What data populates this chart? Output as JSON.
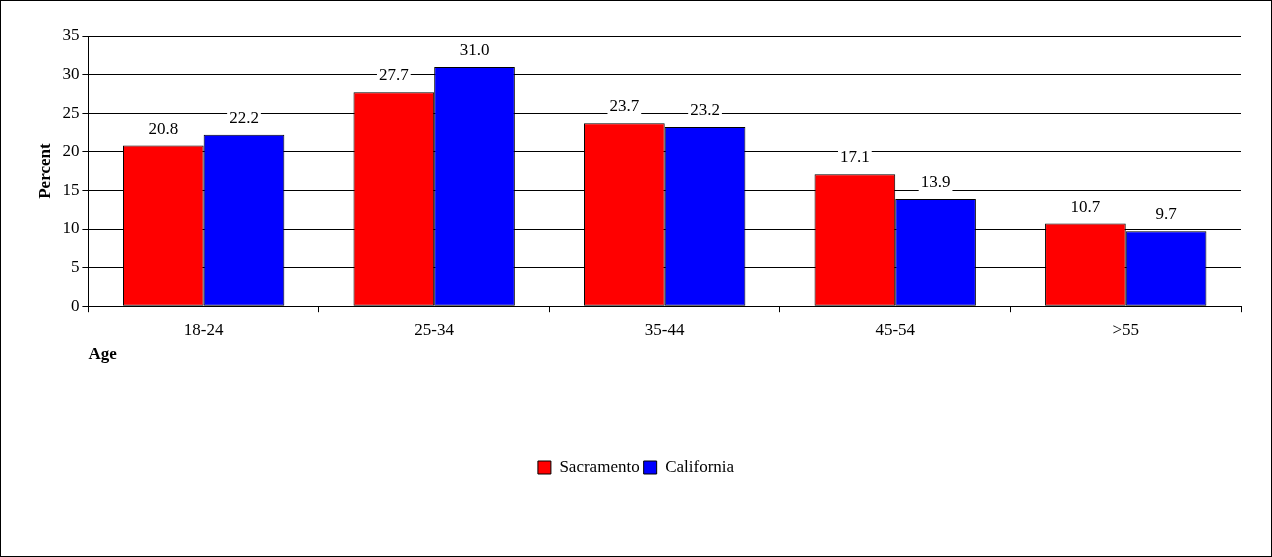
{
  "chart_data": {
    "type": "bar",
    "xlabel": "Age",
    "ylabel": "Percent",
    "categories": [
      "18-24",
      "25-34",
      "35-44",
      "45-54",
      ">55"
    ],
    "series": [
      {
        "name": "Sacramento",
        "color": "#ff0000",
        "values": [
          20.8,
          27.7,
          23.7,
          17.1,
          10.7
        ],
        "value_labels": [
          "20.8",
          "27.7",
          "23.7",
          "17.1",
          "10.7"
        ]
      },
      {
        "name": "California",
        "color": "#0000ff",
        "values": [
          22.2,
          31.0,
          23.2,
          13.9,
          9.7
        ],
        "value_labels": [
          "22.2",
          "31.0",
          "23.2",
          "13.9",
          "9.7"
        ]
      }
    ],
    "ylim": [
      0,
      35
    ],
    "yticks": [
      0,
      5,
      10,
      15,
      20,
      25,
      30,
      35
    ],
    "grid": "y",
    "legend": "bottom"
  }
}
